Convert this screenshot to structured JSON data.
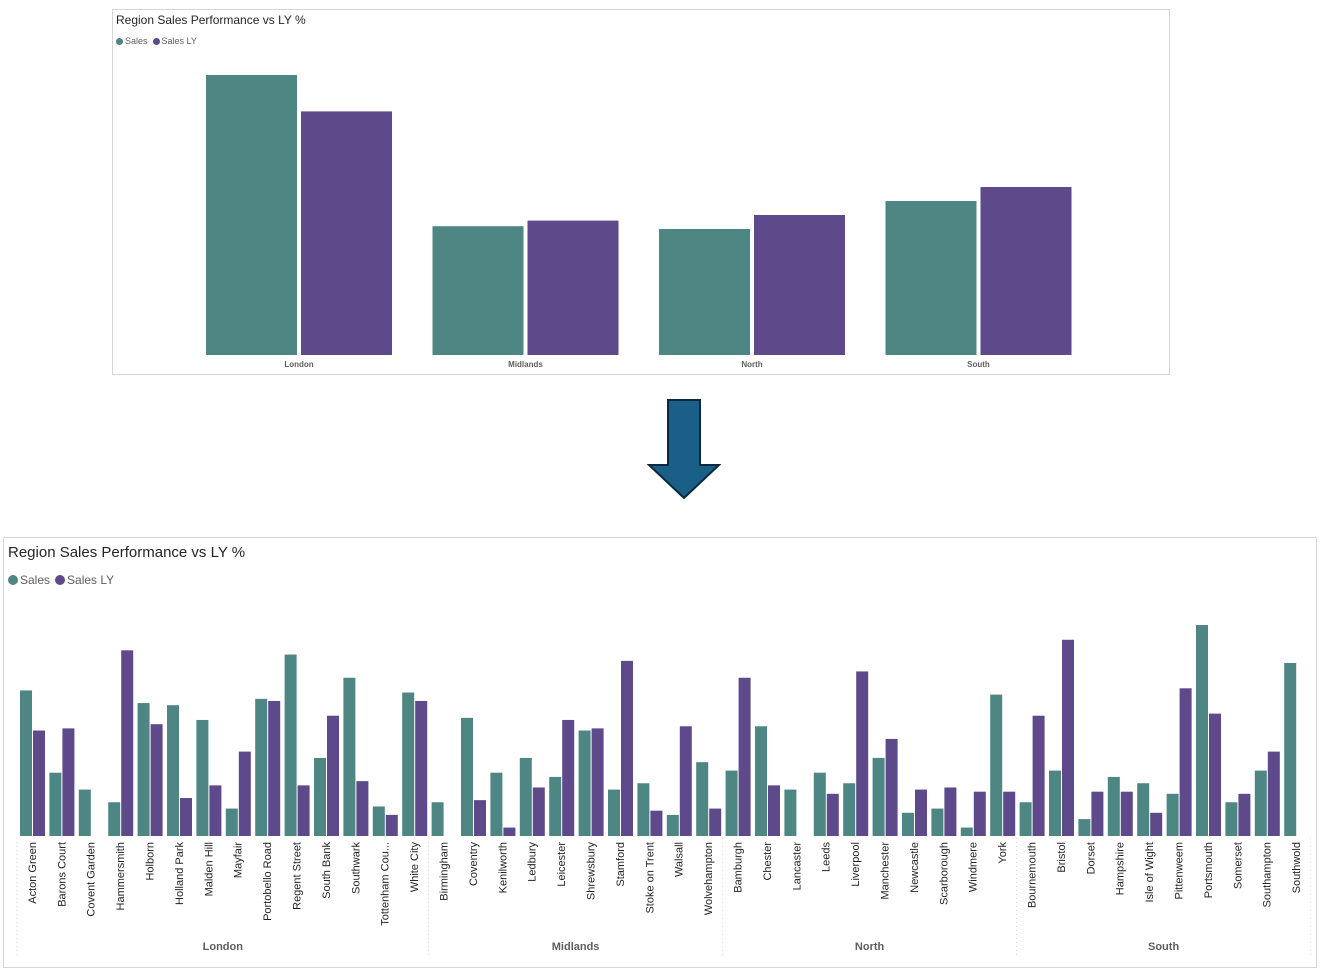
{
  "colors": {
    "sales": "#4E8684",
    "sales_ly": "#5E4A8A",
    "arrow_fill": "#1A5F87",
    "arrow_stroke": "#0B2A40"
  },
  "arrow": {
    "icon": "down-arrow-icon"
  },
  "chart_data": [
    {
      "type": "bar",
      "title": "Region Sales Performance vs LY %",
      "legend": "top-left",
      "grid": false,
      "categories": [
        "London",
        "Midlands",
        "North",
        "South"
      ],
      "series": [
        {
          "name": "Sales",
          "values": [
            100,
            46,
            45,
            55
          ]
        },
        {
          "name": "Sales LY",
          "values": [
            87,
            48,
            50,
            60
          ]
        }
      ],
      "ylim": [
        0,
        100
      ]
    },
    {
      "type": "bar",
      "title": "Region Sales Performance vs LY %",
      "legend": "top-left",
      "grid": false,
      "groups": [
        {
          "name": "London",
          "categories": [
            "Acton Green",
            "Barons Court",
            "Covent Garden",
            "Hammersmith",
            "Holborn",
            "Holland Park",
            "Malden Hill",
            "Mayfair",
            "Portobello Road",
            "Regent Street",
            "South Bank",
            "Southwark",
            "Tottenham Cou...",
            "White City"
          ]
        },
        {
          "name": "Midlands",
          "categories": [
            "Birmingham",
            "Coventry",
            "Kenilworth",
            "Ledbury",
            "Leicester",
            "Shrewsbury",
            "Stamford",
            "Stoke on Trent",
            "Walsall",
            "Wolvehampton"
          ]
        },
        {
          "name": "North",
          "categories": [
            "Bamburgh",
            "Chester",
            "Lancaster",
            "Leeds",
            "Liverpool",
            "Manchester",
            "Newcastle",
            "Scarborough",
            "Windmere",
            "York"
          ]
        },
        {
          "name": "South",
          "categories": [
            "Bournemouth",
            "Bristol",
            "Dorset",
            "Hampshire",
            "Isle of Wight",
            "Pittenweem",
            "Portsmouth",
            "Somerset",
            "Southampton",
            "Southwold"
          ]
        }
      ],
      "series": [
        {
          "name": "Sales",
          "values": [
            69,
            30,
            22,
            16,
            63,
            62,
            55,
            13,
            65,
            86,
            37,
            75,
            14,
            68,
            16,
            56,
            30,
            37,
            28,
            50,
            22,
            25,
            10,
            35,
            31,
            52,
            22,
            30,
            25,
            37,
            11,
            13,
            4,
            67,
            16,
            31,
            8,
            28,
            25,
            20,
            100,
            16,
            31,
            82
          ]
        },
        {
          "name": "Sales LY",
          "values": [
            50,
            51,
            0,
            88,
            53,
            18,
            24,
            40,
            64,
            24,
            57,
            26,
            10,
            64,
            0,
            17,
            4,
            23,
            55,
            51,
            83,
            12,
            52,
            13,
            75,
            24,
            0,
            20,
            78,
            46,
            22,
            23,
            21,
            21,
            57,
            93,
            21,
            21,
            11,
            70,
            58,
            20,
            40,
            0
          ]
        }
      ],
      "ylim": [
        0,
        100
      ]
    }
  ]
}
